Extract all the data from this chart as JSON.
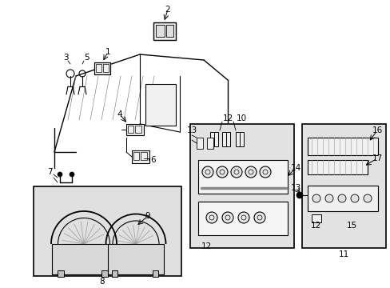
{
  "bg_color": "#ffffff",
  "line_color": "#000000",
  "figsize": [
    4.89,
    3.6
  ],
  "dpi": 100,
  "gray_box": "#e0e0e0",
  "label_fs": 7.5
}
